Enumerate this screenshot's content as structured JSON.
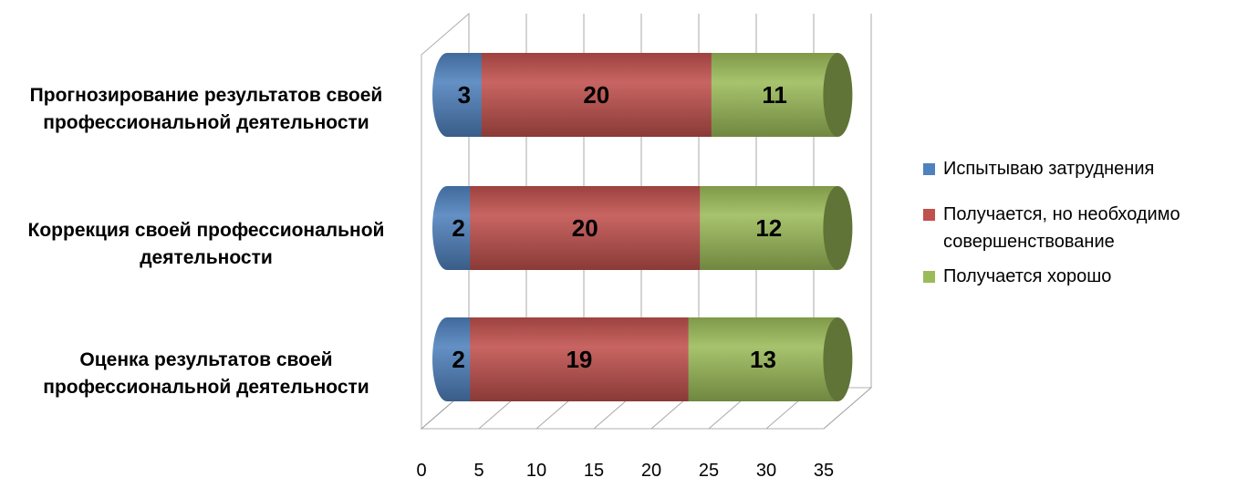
{
  "chart_data": {
    "type": "bar",
    "orientation": "horizontal",
    "stacked": true,
    "style": "3d-cylinder",
    "categories": [
      "Прогнозирование результатов своей профессиональной деятельности",
      "Коррекция своей профессиональной деятельности",
      "Оценка результатов своей профессиональной деятельности"
    ],
    "category_lines": [
      [
        "Прогнозирование результатов своей",
        "профессиональной деятельности"
      ],
      [
        "Коррекция своей профессиональной",
        "деятельности"
      ],
      [
        "Оценка результатов своей",
        "профессиональной деятельности"
      ]
    ],
    "series": [
      {
        "name": "Испытываю затруднения",
        "values": [
          3,
          2,
          2
        ],
        "color": "#4f81bd"
      },
      {
        "name": "Получается, но необходимо совершенствование",
        "values": [
          20,
          20,
          19
        ],
        "color": "#c0504d"
      },
      {
        "name": "Получается хорошо",
        "values": [
          11,
          12,
          13
        ],
        "color": "#9bbb59"
      }
    ],
    "legend_lines": [
      [
        "Испытываю затруднения"
      ],
      [
        "Получается, но необходимо",
        "совершенствование"
      ],
      [
        "Получается хорошо"
      ]
    ],
    "x_ticks": [
      "0",
      "5",
      "10",
      "15",
      "20",
      "25",
      "30",
      "35"
    ],
    "xlim": [
      0,
      35
    ],
    "grid": true,
    "legend_position": "right",
    "data_labels": true
  }
}
